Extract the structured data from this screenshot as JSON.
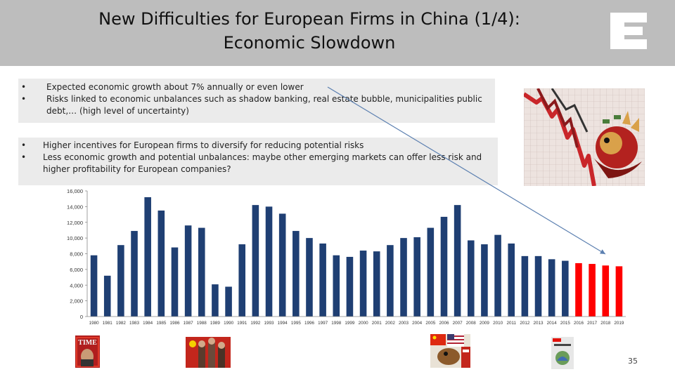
{
  "title_line1": "New Difficulties for European Firms in China (1/4):",
  "title_line2": "Economic Slowdown",
  "bullets_top": [
    "Expected economic growth about 7% annually or even lower",
    "Risks linked to economic unbalances such as shadow banking, real estate bubble, municipalities public debt,… (high level of uncertainty)"
  ],
  "bullets_bottom": [
    "Higher incentives for European firms to diversify for reducing potential risks",
    "Less economic growth and potential unbalances: maybe other emerging markets can offer less risk and higher profitability for European companies?"
  ],
  "page_number": "35",
  "thumbnail_texts": {
    "time_magazine": "TIME"
  },
  "colors": {
    "header_bg": "#bdbdbd",
    "bar_actual": "#1f3f73",
    "bar_forecast": "#ff0000",
    "arrow": "#5b7fb0"
  },
  "chart_data": {
    "type": "bar",
    "categories": [
      "1980",
      "1981",
      "1982",
      "1983",
      "1984",
      "1985",
      "1986",
      "1987",
      "1988",
      "1989",
      "1990",
      "1991",
      "1992",
      "1993",
      "1994",
      "1995",
      "1996",
      "1997",
      "1998",
      "1999",
      "2000",
      "2001",
      "2002",
      "2003",
      "2004",
      "2005",
      "2006",
      "2007",
      "2008",
      "2009",
      "2010",
      "2011",
      "2012",
      "2013",
      "2014",
      "2015",
      "2016",
      "2017",
      "2018",
      "2019"
    ],
    "values": [
      7800,
      5200,
      9100,
      10900,
      15200,
      13500,
      8800,
      11600,
      11300,
      4100,
      3800,
      9200,
      14200,
      14000,
      13100,
      10900,
      10000,
      9300,
      7800,
      7600,
      8400,
      8300,
      9100,
      10000,
      10100,
      11300,
      12700,
      14200,
      9700,
      9200,
      10400,
      9300,
      7700,
      7700,
      7300,
      7100,
      6800,
      6700,
      6500,
      6400
    ],
    "forecast_from": "2016",
    "yticks": [
      "0",
      "2,000",
      "4,000",
      "6,000",
      "8,000",
      "10,000",
      "12,000",
      "14,000",
      "16,000"
    ],
    "ylim": [
      0,
      16000
    ],
    "title": "",
    "xlabel": "",
    "ylabel": "",
    "grid": false,
    "legend": "none"
  }
}
